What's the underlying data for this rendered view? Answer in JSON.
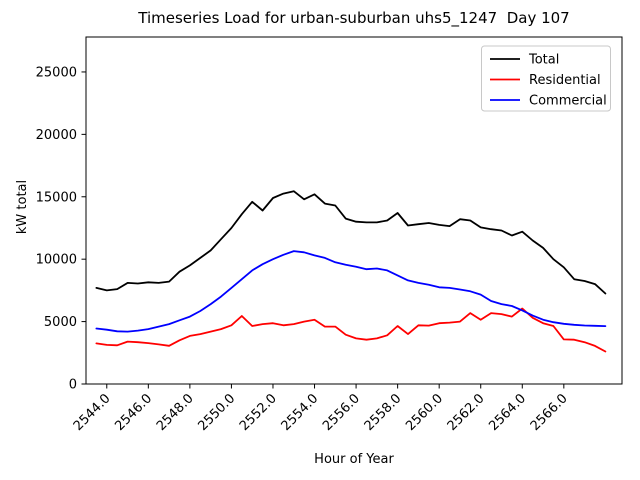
{
  "title": "Timeseries Load for urban-suburban uhs5_1247  Day 107",
  "xlabel": "Hour of Year",
  "ylabel": "kW total",
  "legend": {
    "position": "upper right",
    "entries": [
      "Total",
      "Residential",
      "Commercial"
    ]
  },
  "chart_data": {
    "type": "line",
    "title": "Timeseries Load for urban-suburban uhs5_1247  Day 107",
    "xlabel": "Hour of Year",
    "ylabel": "kW total",
    "grid": false,
    "legend_position": "upper right",
    "xlim": [
      2543.0,
      2568.8
    ],
    "ylim": [
      0,
      27800
    ],
    "xticks": [
      2544,
      2546,
      2548,
      2550,
      2552,
      2554,
      2556,
      2558,
      2560,
      2562,
      2564,
      2566
    ],
    "xtick_labels": [
      "2544.0",
      "2546.0",
      "2548.0",
      "2550.0",
      "2552.0",
      "2554.0",
      "2556.0",
      "2558.0",
      "2560.0",
      "2562.0",
      "2564.0",
      "2566.0"
    ],
    "yticks": [
      0,
      5000,
      10000,
      15000,
      20000,
      25000
    ],
    "ytick_labels": [
      "0",
      "5000",
      "10000",
      "15000",
      "20000",
      "25000"
    ],
    "x": [
      2543.5,
      2544.0,
      2544.5,
      2545.0,
      2545.5,
      2546.0,
      2546.5,
      2547.0,
      2547.5,
      2548.0,
      2548.5,
      2549.0,
      2549.5,
      2550.0,
      2550.5,
      2551.0,
      2551.5,
      2552.0,
      2552.5,
      2553.0,
      2553.5,
      2554.0,
      2554.5,
      2555.0,
      2555.5,
      2556.0,
      2556.5,
      2557.0,
      2557.5,
      2558.0,
      2558.5,
      2559.0,
      2559.5,
      2560.0,
      2560.5,
      2561.0,
      2561.5,
      2562.0,
      2562.5,
      2563.0,
      2563.5,
      2564.0,
      2564.5,
      2565.0,
      2565.5,
      2566.0,
      2566.5,
      2567.0,
      2567.5,
      2568.0
    ],
    "series": [
      {
        "name": "Total",
        "color": "#000000",
        "values": [
          7700,
          7500,
          7600,
          8100,
          8050,
          8150,
          8100,
          8200,
          9000,
          9500,
          10100,
          10700,
          11600,
          12500,
          13600,
          14600,
          13900,
          14900,
          15250,
          15450,
          14800,
          15200,
          14450,
          14300,
          13250,
          13000,
          12950,
          12950,
          13100,
          13700,
          12700,
          12800,
          12900,
          12750,
          12650,
          13200,
          13100,
          12550,
          12400,
          12300,
          11900,
          12200,
          11500,
          10900,
          10000,
          9350,
          8400,
          8250,
          8000,
          7250
        ]
      },
      {
        "name": "Residential",
        "color": "#ff0000",
        "values": [
          3250,
          3130,
          3100,
          3400,
          3350,
          3280,
          3170,
          3060,
          3500,
          3850,
          4000,
          4200,
          4400,
          4700,
          5450,
          4650,
          4800,
          4870,
          4700,
          4800,
          5000,
          5140,
          4600,
          4600,
          3950,
          3650,
          3550,
          3650,
          3900,
          4650,
          4000,
          4700,
          4680,
          4870,
          4920,
          5000,
          5680,
          5140,
          5680,
          5600,
          5400,
          6050,
          5300,
          4870,
          4650,
          3575,
          3550,
          3350,
          3050,
          2600
        ]
      },
      {
        "name": "Commercial",
        "color": "#0000ff",
        "values": [
          4450,
          4350,
          4220,
          4200,
          4280,
          4400,
          4600,
          4800,
          5100,
          5400,
          5850,
          6400,
          7000,
          7700,
          8400,
          9100,
          9600,
          10000,
          10350,
          10650,
          10550,
          10300,
          10100,
          9750,
          9550,
          9400,
          9200,
          9250,
          9100,
          8700,
          8300,
          8100,
          7950,
          7750,
          7700,
          7570,
          7430,
          7160,
          6650,
          6400,
          6250,
          5900,
          5480,
          5150,
          4950,
          4820,
          4740,
          4690,
          4660,
          4640
        ]
      }
    ]
  }
}
